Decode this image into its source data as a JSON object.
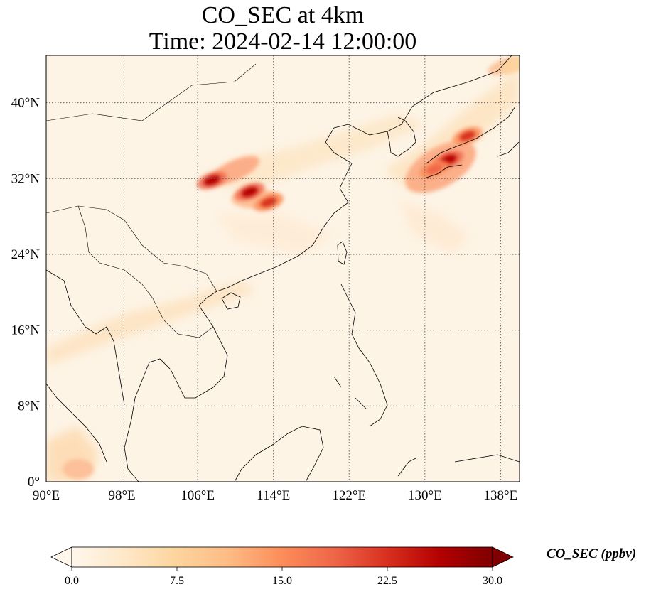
{
  "figure": {
    "title_line1": "CO_SEC at 4km",
    "title_line2": "Time: 2024-02-14 12:00:00"
  },
  "map": {
    "projection": "PlateCarree",
    "lon_range": [
      90,
      140
    ],
    "lat_range": [
      0,
      45
    ],
    "gridlines": "dotted",
    "lon_ticks": [
      {
        "value": 90,
        "label": "90°E"
      },
      {
        "value": 98,
        "label": "98°E"
      },
      {
        "value": 106,
        "label": "106°E"
      },
      {
        "value": 114,
        "label": "114°E"
      },
      {
        "value": 122,
        "label": "122°E"
      },
      {
        "value": 130,
        "label": "130°E"
      },
      {
        "value": 138,
        "label": "138°E"
      }
    ],
    "lat_ticks": [
      {
        "value": 0,
        "label": "0°"
      },
      {
        "value": 8,
        "label": "8°N"
      },
      {
        "value": 16,
        "label": "16°N"
      },
      {
        "value": 24,
        "label": "24°N"
      },
      {
        "value": 32,
        "label": "32°N"
      },
      {
        "value": 40,
        "label": "40°N"
      }
    ],
    "hotspots": [
      {
        "lon": 107.5,
        "lat": 31.8,
        "value": 28
      },
      {
        "lon": 111.5,
        "lat": 30.6,
        "value": 26
      },
      {
        "lon": 113.5,
        "lat": 29.5,
        "value": 24
      },
      {
        "lon": 132.5,
        "lat": 34.0,
        "value": 28
      },
      {
        "lon": 134.5,
        "lat": 36.5,
        "value": 24
      },
      {
        "lon": 131.0,
        "lat": 33.0,
        "value": 20
      },
      {
        "lon": 139.5,
        "lat": 44.0,
        "value": 9
      }
    ]
  },
  "colorbar": {
    "label": "CO_SEC (ppbv)",
    "cmap": "OrRd",
    "range": [
      0.0,
      30.0
    ],
    "extend": "both",
    "ticks": [
      "0.0",
      "7.5",
      "15.0",
      "22.5",
      "30.0"
    ],
    "colors": [
      "#fff7ec",
      "#fee8c8",
      "#fdd49e",
      "#fdbb84",
      "#fc8d59",
      "#ef6548",
      "#d7301f",
      "#b30000",
      "#7f0000"
    ]
  }
}
